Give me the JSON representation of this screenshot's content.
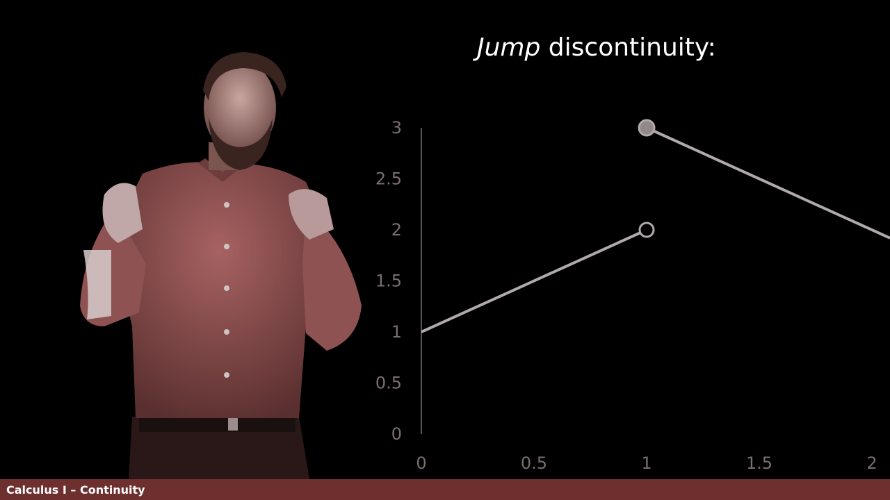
{
  "slide": {
    "title_emphasis": "Jump",
    "title_rest": " discontinuity:"
  },
  "footer": {
    "course_title": "Calculus I – Continuity"
  },
  "colors": {
    "background": "#000000",
    "footer_bar": "#6e2f2f",
    "axis_text": "#7a6f6f",
    "line": "#b0aaaa",
    "filled_point": "#8f8989"
  },
  "chart_data": {
    "type": "line",
    "title": "",
    "xlabel": "",
    "ylabel": "",
    "xlim": [
      0,
      2
    ],
    "ylim": [
      0,
      3
    ],
    "x_ticks": [
      "0",
      "0.5",
      "1",
      "1.5",
      "2"
    ],
    "y_ticks": [
      "0",
      "0.5",
      "1",
      "1.5",
      "2",
      "2.5",
      "3"
    ],
    "grid": false,
    "legend": "none",
    "series": [
      {
        "points": [
          {
            "x": 0,
            "y": 1
          },
          {
            "x": 1,
            "y": 2
          }
        ],
        "end_marker": "open"
      },
      {
        "points": [
          {
            "x": 1,
            "y": 3
          },
          {
            "x": 2,
            "y": 2
          }
        ],
        "start_marker": "filled"
      }
    ]
  }
}
